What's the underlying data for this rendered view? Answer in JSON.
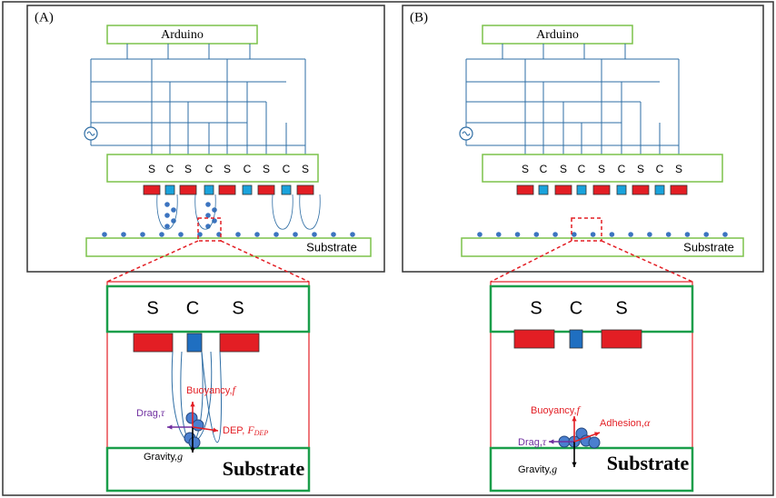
{
  "panels": [
    {
      "label": "(A)",
      "controller": "Arduino",
      "electrodes": [
        "S",
        "C",
        "S",
        "C",
        "S",
        "C",
        "S",
        "C",
        "S"
      ],
      "substrate": "Substrate",
      "zoom": {
        "electrodes": [
          "S",
          "C",
          "S"
        ],
        "buoyancy": {
          "name": "Buoyancy,",
          "symbol": "f"
        },
        "drag": {
          "name": "Drag,",
          "symbol": "τ"
        },
        "dep": {
          "name": "DEP, ",
          "symbol": "F",
          "subscript": "DEP"
        },
        "gravity": {
          "name": "Gravity,",
          "symbol": "g"
        },
        "substrate": "Substrate"
      }
    },
    {
      "label": "(B)",
      "controller": "Arduino",
      "electrodes": [
        "S",
        "C",
        "S",
        "C",
        "S",
        "C",
        "S",
        "C",
        "S"
      ],
      "substrate": "Substrate",
      "zoom": {
        "electrodes": [
          "S",
          "C",
          "S"
        ],
        "buoyancy": {
          "name": "Buoyancy,",
          "symbol": "f"
        },
        "drag": {
          "name": "Drag,",
          "symbol": "τ"
        },
        "adhesion": {
          "name": "Adhesion,",
          "symbol": "α"
        },
        "gravity": {
          "name": "Gravity,",
          "symbol": "g"
        },
        "substrate": "Substrate"
      }
    }
  ]
}
